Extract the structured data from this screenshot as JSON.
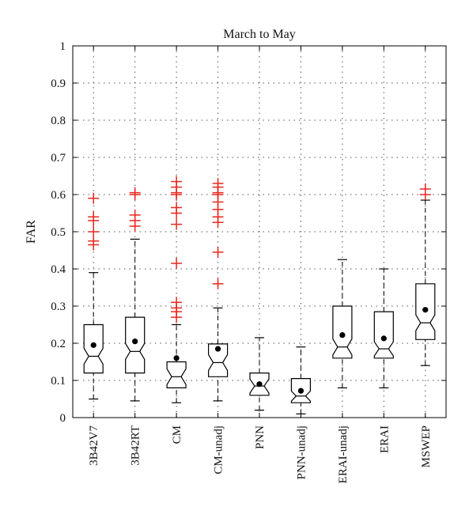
{
  "chart_data": {
    "type": "box",
    "title": "March to May",
    "xlabel": "",
    "ylabel": "FAR",
    "ylim": [
      0,
      1
    ],
    "yticks": [
      "0",
      "0.1",
      "0.2",
      "0.3",
      "0.4",
      "0.5",
      "0.6",
      "0.7",
      "0.8",
      "0.9",
      "1"
    ],
    "grid": true,
    "categories": [
      "3B42V7",
      "3B42RT",
      "CM",
      "CM-unadj",
      "PNN",
      "PNN-unadj",
      "ERAI-unadj",
      "ERAI",
      "MSWEP"
    ],
    "boxes": [
      {
        "whisker_low": 0.05,
        "q1": 0.12,
        "median": 0.165,
        "q3": 0.25,
        "whisker_high": 0.39,
        "mean": 0.195,
        "outliers": [
          0.465,
          0.475,
          0.5,
          0.53,
          0.54,
          0.59
        ]
      },
      {
        "whisker_low": 0.045,
        "q1": 0.12,
        "median": 0.178,
        "q3": 0.27,
        "whisker_high": 0.48,
        "mean": 0.205,
        "outliers": [
          0.515,
          0.53,
          0.545,
          0.6,
          0.605
        ]
      },
      {
        "whisker_low": 0.04,
        "q1": 0.08,
        "median": 0.11,
        "q3": 0.15,
        "whisker_high": 0.25,
        "mean": 0.16,
        "outliers": [
          0.27,
          0.285,
          0.295,
          0.31,
          0.415,
          0.52,
          0.55,
          0.565,
          0.6,
          0.605,
          0.62,
          0.635
        ]
      },
      {
        "whisker_low": 0.045,
        "q1": 0.11,
        "median": 0.148,
        "q3": 0.198,
        "whisker_high": 0.295,
        "mean": 0.185,
        "outliers": [
          0.36,
          0.445,
          0.525,
          0.54,
          0.56,
          0.58,
          0.6,
          0.605,
          0.62,
          0.63
        ]
      },
      {
        "whisker_low": 0.02,
        "q1": 0.06,
        "median": 0.085,
        "q3": 0.12,
        "whisker_high": 0.215,
        "mean": 0.09,
        "outliers": []
      },
      {
        "whisker_low": 0.01,
        "q1": 0.04,
        "median": 0.058,
        "q3": 0.105,
        "whisker_high": 0.19,
        "mean": 0.072,
        "outliers": []
      },
      {
        "whisker_low": 0.08,
        "q1": 0.16,
        "median": 0.19,
        "q3": 0.3,
        "whisker_high": 0.425,
        "mean": 0.222,
        "outliers": []
      },
      {
        "whisker_low": 0.08,
        "q1": 0.16,
        "median": 0.185,
        "q3": 0.285,
        "whisker_high": 0.4,
        "mean": 0.213,
        "outliers": []
      },
      {
        "whisker_low": 0.14,
        "q1": 0.21,
        "median": 0.255,
        "q3": 0.36,
        "whisker_high": 0.585,
        "mean": 0.29,
        "outliers": [
          0.6,
          0.615
        ]
      }
    ],
    "colors": {
      "box": "#000000",
      "whisker": "#000000",
      "outlier": "#e8281e",
      "mean": "#000000",
      "grid": "#555555"
    }
  }
}
